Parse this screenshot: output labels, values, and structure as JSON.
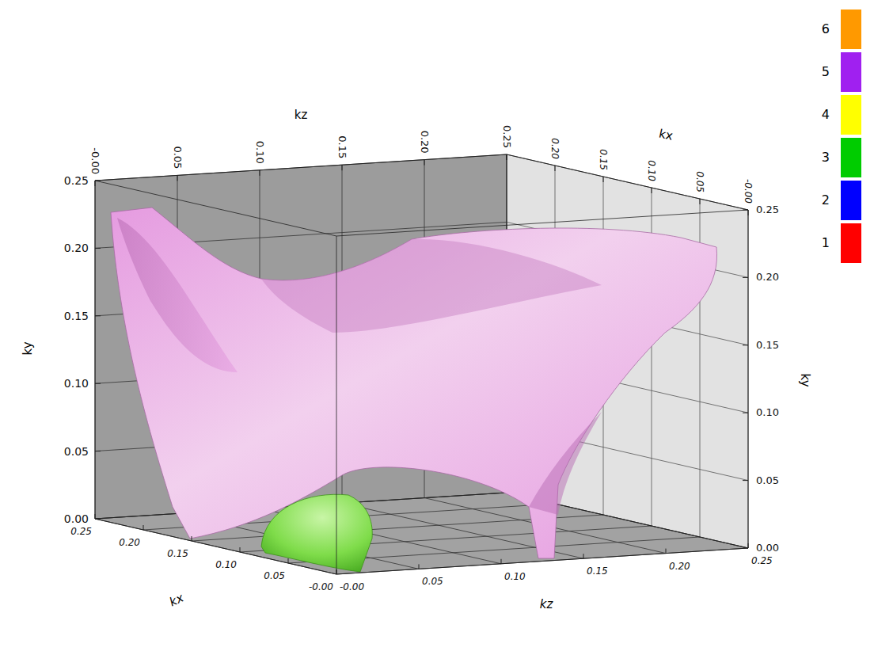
{
  "chart_data": {
    "type": "isosurface3d",
    "xlabel": "kx",
    "ylabel": "ky",
    "zlabel": "kz",
    "xlim": [
      0,
      0.25
    ],
    "ylim": [
      0,
      0.25
    ],
    "zlim": [
      0,
      0.25
    ],
    "xticks": [
      {
        "value": 0,
        "label": "-0.00"
      },
      {
        "value": 0.05,
        "label": "0.05"
      },
      {
        "value": 0.1,
        "label": "0.10"
      },
      {
        "value": 0.15,
        "label": "0.15"
      },
      {
        "value": 0.2,
        "label": "0.20"
      },
      {
        "value": 0.25,
        "label": "0.25"
      }
    ],
    "yticks": [
      {
        "value": 0,
        "label": "0.00"
      },
      {
        "value": 0.05,
        "label": "0.05"
      },
      {
        "value": 0.1,
        "label": "0.10"
      },
      {
        "value": 0.15,
        "label": "0.15"
      },
      {
        "value": 0.2,
        "label": "0.20"
      },
      {
        "value": 0.25,
        "label": "0.25"
      }
    ],
    "zticks": [
      {
        "value": 0,
        "label": "-0.00"
      },
      {
        "value": 0.05,
        "label": "0.05"
      },
      {
        "value": 0.1,
        "label": "0.10"
      },
      {
        "value": 0.15,
        "label": "0.15"
      },
      {
        "value": 0.2,
        "label": "0.20"
      },
      {
        "value": 0.25,
        "label": "0.25"
      }
    ],
    "grid": true,
    "colorbar": {
      "values": [
        1,
        2,
        3,
        4,
        5,
        6
      ],
      "colors": [
        "#ff0000",
        "#0000ff",
        "#00cc00",
        "#ffff00",
        "#a020f0",
        "#ff9900"
      ]
    },
    "surfaces": [
      {
        "color": "#e59be0"
      },
      {
        "color": "#7fdc4a"
      }
    ]
  }
}
